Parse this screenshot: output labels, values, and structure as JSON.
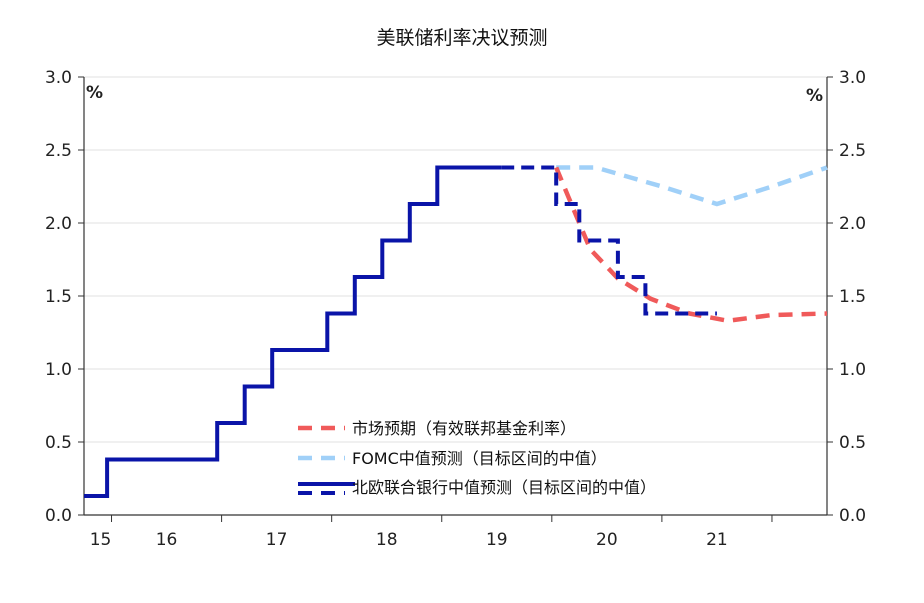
{
  "chart_data": {
    "type": "line",
    "title": "美联储利率决议预测",
    "y_unit_left": "%",
    "y_unit_right": "%",
    "ylim": [
      0,
      3.0
    ],
    "yticks": [
      "0.0",
      "0.5",
      "1.0",
      "1.5",
      "2.0",
      "2.5",
      "3.0"
    ],
    "yticks_values": [
      0,
      0.5,
      1.0,
      1.5,
      2.0,
      2.5,
      3.0
    ],
    "xlim": [
      2014.75,
      2021.5
    ],
    "xtick_labels": [
      "15",
      "16",
      "17",
      "18",
      "19",
      "20",
      "21"
    ],
    "xtick_label_positions": [
      2014.9,
      2015.5,
      2016.5,
      2017.5,
      2018.5,
      2019.5,
      2020.5
    ],
    "xtick_marks": [
      2015.0,
      2016.0,
      2017.0,
      2018.0,
      2019.0,
      2020.0,
      2021.0
    ],
    "grid": true,
    "legend_placement": "bottom-center",
    "series": [
      {
        "name": "市场预期（有效联邦基金利率）",
        "style": "dashed",
        "color": "#f05a5a",
        "x": [
          2019.04,
          2019.15,
          2019.35,
          2019.6,
          2019.9,
          2020.25,
          2020.6,
          2021.0,
          2021.5
        ],
        "y": [
          2.38,
          2.18,
          1.82,
          1.62,
          1.48,
          1.38,
          1.33,
          1.37,
          1.38
        ]
      },
      {
        "name": "FOMC中值预测（目标区间的中值）",
        "style": "dashed",
        "color": "#a0d0f8",
        "x": [
          2019.04,
          2019.4,
          2020.0,
          2020.5,
          2021.0,
          2021.5
        ],
        "y": [
          2.38,
          2.38,
          2.25,
          2.13,
          2.25,
          2.38
        ]
      },
      {
        "name": "北欧联合银行中值预测（目标区间的中值）",
        "style": "step",
        "color": "#0a14a8",
        "solid_x": [
          2014.75,
          2014.96,
          2014.96,
          2015.96,
          2015.96,
          2016.21,
          2016.21,
          2016.46,
          2016.46,
          2016.96,
          2016.96,
          2017.21,
          2017.21,
          2017.46,
          2017.46,
          2017.71,
          2017.71,
          2017.96,
          2017.96,
          2018.21,
          2018.21,
          2018.54
        ],
        "solid_y": [
          0.13,
          0.13,
          0.38,
          0.38,
          0.63,
          0.63,
          0.88,
          0.88,
          1.13,
          1.13,
          1.38,
          1.38,
          1.63,
          1.63,
          1.88,
          1.88,
          2.13,
          2.13,
          2.38,
          2.38,
          2.38,
          2.38
        ],
        "dashed_x": [
          2018.54,
          2019.04,
          2019.04,
          2019.25,
          2019.25,
          2019.6,
          2019.6,
          2019.85,
          2019.85,
          2020.1,
          2020.1,
          2020.5
        ],
        "dashed_y": [
          2.38,
          2.38,
          2.13,
          2.13,
          1.88,
          1.88,
          1.63,
          1.63,
          1.38,
          1.38,
          1.38,
          1.38
        ]
      }
    ]
  },
  "colors": {
    "market": "#f05a5a",
    "fomc": "#a0d0f8",
    "nordea": "#0a14a8",
    "grid": "#e2e2e2",
    "axis": "#333333"
  }
}
